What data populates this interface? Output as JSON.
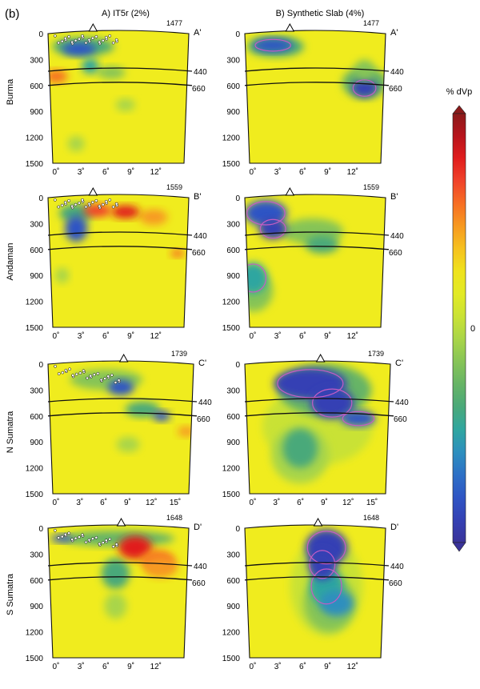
{
  "figure_label": "(b)",
  "columns": [
    {
      "title": "A) IT5r (2%)"
    },
    {
      "title": "B) Synthetic Slab (4%)"
    }
  ],
  "depth_ticks": [
    "0",
    "300",
    "600",
    "900",
    "1200",
    "1500"
  ],
  "boundaries": [
    "440",
    "660"
  ],
  "rows": [
    {
      "name": "Burma",
      "end_label": "A'",
      "distance": "1477",
      "x_ticks": [
        "0˚",
        "3˚",
        "6˚",
        "9˚",
        "12˚"
      ]
    },
    {
      "name": "Andaman",
      "end_label": "B'",
      "distance": "1559",
      "x_ticks": [
        "0˚",
        "3˚",
        "6˚",
        "9˚",
        "12˚"
      ]
    },
    {
      "name": "N Sumatra",
      "end_label": "C'",
      "distance": "1739",
      "x_ticks": [
        "0˚",
        "3˚",
        "6˚",
        "9˚",
        "12˚",
        "15˚"
      ]
    },
    {
      "name": "S Sumatra",
      "end_label": "D'",
      "distance": "1648",
      "x_ticks": [
        "0˚",
        "3˚",
        "6˚",
        "9˚",
        "12˚"
      ]
    }
  ],
  "colorbar": {
    "title": "% dVp",
    "zero_label": "0",
    "colors": [
      "#8a1a1a",
      "#b8141c",
      "#e11d1d",
      "#f0432a",
      "#f76f23",
      "#f79a20",
      "#f6c21f",
      "#efe31c",
      "#e2ea25",
      "#c9e235",
      "#a9d548",
      "#86c457",
      "#66b466",
      "#4aa97a",
      "#2fa6a0",
      "#2d8fbe",
      "#2d70c6",
      "#2f55c4",
      "#3441b4",
      "#3a339a"
    ]
  },
  "colors": {
    "background": "#f0ec1e",
    "slow": "#e62a1f",
    "fast": "#3340b8",
    "contour": "#c45cc4"
  }
}
